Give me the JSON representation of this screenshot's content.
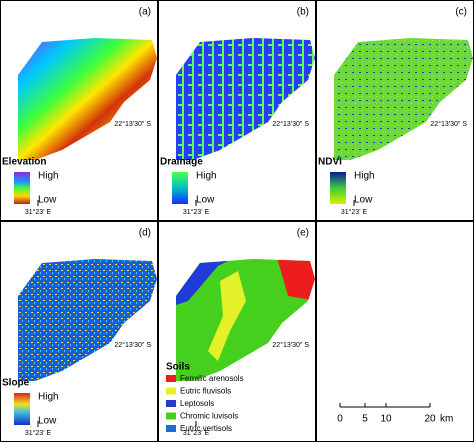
{
  "panels": [
    {
      "label": "(a)",
      "legend_title": "Elevation",
      "legend_high": "High",
      "legend_low": "Low",
      "lat_label": "22°13'30\" S",
      "lon_label": "31°23' E"
    },
    {
      "label": "(b)",
      "legend_title": "Drainage",
      "legend_high": "High",
      "legend_low": "Low",
      "lat_label": "22°13'30\" S",
      "lon_label": "31°23' E"
    },
    {
      "label": "(c)",
      "legend_title": "NDVI",
      "legend_high": "High",
      "legend_low": "Low",
      "lat_label": "22°13'30\" S",
      "lon_label": "31°23' E"
    },
    {
      "label": "(d)",
      "legend_title": "Slope",
      "legend_high": "High",
      "legend_low": "Low",
      "lat_label": "22°13'30\" S",
      "lon_label": "31°23' E"
    },
    {
      "label": "(e)",
      "lat_label": "22°13'30\" S",
      "lon_label": "31°23' E"
    }
  ],
  "soils": {
    "title": "Soils",
    "items": [
      "Ferralic arenosols",
      "Eutric fluvisols",
      "Leptosols",
      "Chromic luvisols",
      "Eutric vertisols"
    ]
  },
  "scale_bar": {
    "ticks": [
      "0",
      "5",
      "10",
      "20"
    ],
    "unit": "km"
  }
}
